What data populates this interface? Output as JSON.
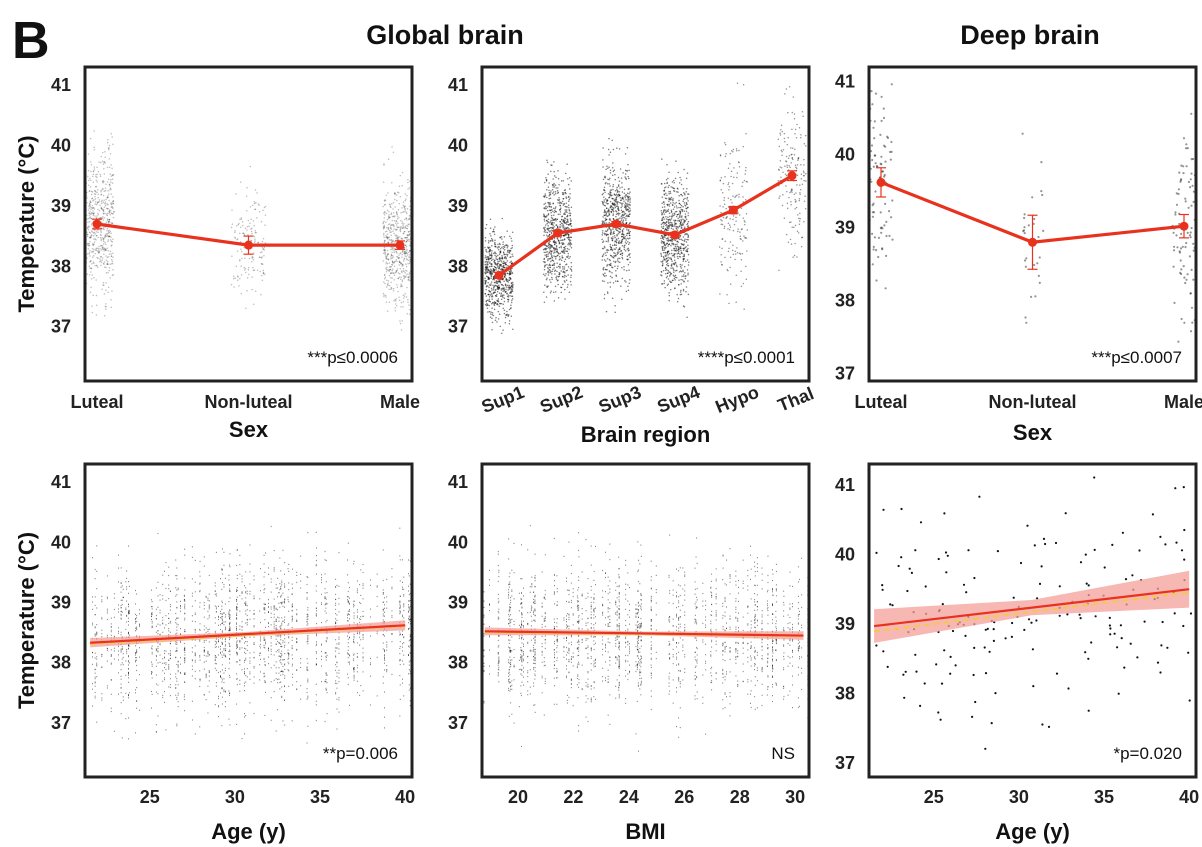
{
  "panel_letter": "B",
  "sections": [
    "Global brain",
    "Deep brain"
  ],
  "colors": {
    "mean_line": "#e8321e",
    "ci_band": "#f4a09a",
    "fit_dashed": "#f2c94c",
    "points": "#111111",
    "frame": "#222222"
  },
  "chart_data": [
    {
      "type": "scatter",
      "section": "Global brain",
      "categories": [
        "Luteal",
        "Non-luteal",
        "Male"
      ],
      "means": [
        38.7,
        38.35,
        38.35
      ],
      "errors": [
        0.08,
        0.15,
        0.07
      ],
      "point_density": [
        "dense",
        "sparse",
        "dense"
      ],
      "point_spread": [
        0.65,
        0.55,
        0.6
      ],
      "ylabel": "Temperature (°C)",
      "xlabel": "Sex",
      "ylim": [
        36.1,
        41.3
      ],
      "yticks": [
        37,
        38,
        39,
        40,
        41
      ],
      "annotation": "***p≤0.0006"
    },
    {
      "type": "scatter",
      "section": "Global brain",
      "categories": [
        "Sup1",
        "Sup2",
        "Sup3",
        "Sup4",
        "Hypo",
        "Thal"
      ],
      "means": [
        37.85,
        38.55,
        38.7,
        38.52,
        38.93,
        39.5
      ],
      "errors": [
        0.05,
        0.04,
        0.04,
        0.04,
        0.06,
        0.08
      ],
      "point_density": [
        "dense",
        "dense",
        "dense",
        "dense",
        "sparse",
        "sparse"
      ],
      "point_spread": [
        0.4,
        0.55,
        0.6,
        0.55,
        0.8,
        0.7
      ],
      "ylabel": "",
      "xlabel": "Brain region",
      "ylim": [
        36.1,
        41.3
      ],
      "yticks": [
        37,
        38,
        39,
        40,
        41
      ],
      "annotation": "****p≤0.0001"
    },
    {
      "type": "scatter",
      "section": "Deep brain",
      "categories": [
        "Luteal",
        "Non-luteal",
        "Male"
      ],
      "means": [
        39.62,
        38.8,
        39.02
      ],
      "errors": [
        0.2,
        0.37,
        0.16
      ],
      "point_density": [
        "medium",
        "sparse",
        "medium"
      ],
      "point_spread": [
        0.85,
        0.7,
        0.95
      ],
      "ylabel": "",
      "xlabel": "Sex",
      "ylim": [
        36.9,
        41.2
      ],
      "yticks": [
        37,
        38,
        39,
        40,
        41
      ],
      "annotation": "***p≤0.0007"
    },
    {
      "type": "scatter",
      "section": "Global brain",
      "fit": {
        "x": [
          21.5,
          40
        ],
        "y": [
          38.33,
          38.62
        ],
        "ci": 0.07
      },
      "point_density": "dense",
      "ylabel": "Temperature (°C)",
      "xlabel": "Age (y)",
      "xlim": [
        21.2,
        40.4
      ],
      "xticks": [
        25,
        30,
        35,
        40
      ],
      "ylim": [
        36.1,
        41.3
      ],
      "yticks": [
        37,
        38,
        39,
        40,
        41
      ],
      "annotation": "**p=0.006"
    },
    {
      "type": "scatter",
      "section": "Global brain",
      "fit": {
        "x": [
          18.8,
          30.3
        ],
        "y": [
          38.52,
          38.45
        ],
        "ci": 0.06
      },
      "point_density": "dense",
      "ylabel": "",
      "xlabel": "BMI",
      "xlim": [
        18.7,
        30.5
      ],
      "xticks": [
        20,
        22,
        24,
        26,
        28,
        30
      ],
      "ylim": [
        36.1,
        41.3
      ],
      "yticks": [
        37,
        38,
        39,
        40,
        41
      ],
      "annotation": "NS"
    },
    {
      "type": "scatter",
      "section": "Deep brain",
      "fit": {
        "x": [
          21.5,
          40
        ],
        "y": [
          38.97,
          39.5
        ],
        "ci": 0.22
      },
      "point_density": "sparse",
      "ylabel": "",
      "xlabel": "Age (y)",
      "xlim": [
        21.2,
        40.4
      ],
      "xticks": [
        25,
        30,
        35,
        40
      ],
      "ylim": [
        36.8,
        41.3
      ],
      "yticks": [
        37,
        38,
        39,
        40,
        41
      ],
      "annotation": "*p=0.020"
    }
  ]
}
